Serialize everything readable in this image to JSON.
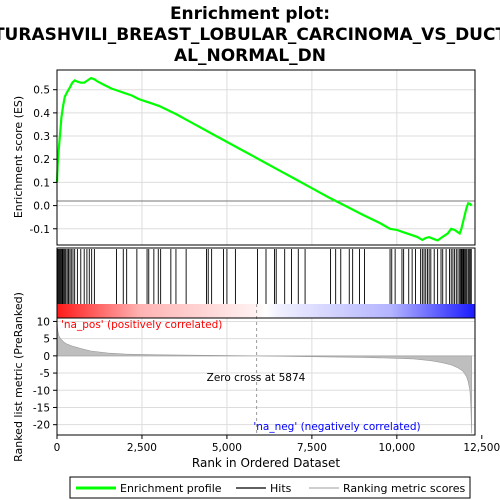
{
  "chart_data": {
    "type": "line",
    "title_lines": [
      "Enrichment plot:",
      "TURASHVILI_BREAST_LOBULAR_CARCINOMA_VS_DUCT",
      "AL_NORMAL_DN"
    ],
    "es_panel": {
      "ylabel": "Enrichment score (ES)",
      "ylim": [
        -0.17,
        0.585
      ],
      "yticks": [
        -0.1,
        0.0,
        0.1,
        0.2,
        0.3,
        0.4,
        0.5
      ],
      "ytick_labels": [
        "-0.1",
        "0.0",
        "0.1",
        "0.2",
        "0.3",
        "0.4",
        "0.5"
      ],
      "series": [
        {
          "name": "Enrichment profile",
          "x": [
            0,
            20,
            50,
            90,
            130,
            180,
            230,
            300,
            380,
            450,
            520,
            600,
            700,
            800,
            900,
            1000,
            1100,
            1200,
            1400,
            1600,
            1800,
            2000,
            2200,
            2400,
            2600,
            2800,
            3000,
            3500,
            4000,
            4500,
            5000,
            5500,
            6000,
            6500,
            7000,
            7500,
            8000,
            8500,
            9000,
            9500,
            9800,
            10000,
            10200,
            10400,
            10600,
            10750,
            10850,
            10950,
            11100,
            11200,
            11300,
            11400,
            11500,
            11600,
            11700,
            11800,
            11850,
            11900,
            11950,
            12000,
            12050,
            12100,
            12150,
            12200
          ],
          "y": [
            0.1,
            0.18,
            0.24,
            0.31,
            0.38,
            0.43,
            0.47,
            0.49,
            0.51,
            0.53,
            0.54,
            0.535,
            0.53,
            0.53,
            0.54,
            0.55,
            0.545,
            0.535,
            0.52,
            0.505,
            0.495,
            0.485,
            0.475,
            0.46,
            0.45,
            0.44,
            0.43,
            0.395,
            0.355,
            0.315,
            0.275,
            0.235,
            0.195,
            0.155,
            0.115,
            0.075,
            0.035,
            -0.002,
            -0.04,
            -0.075,
            -0.1,
            -0.105,
            -0.115,
            -0.125,
            -0.135,
            -0.148,
            -0.14,
            -0.136,
            -0.145,
            -0.15,
            -0.14,
            -0.13,
            -0.12,
            -0.1,
            -0.105,
            -0.115,
            -0.12,
            -0.1,
            -0.07,
            -0.04,
            -0.01,
            0.01,
            0.008,
            0.0
          ],
          "color": "#00ff00"
        }
      ]
    },
    "hits_panel": {
      "hit_positions": [
        10,
        30,
        60,
        90,
        120,
        150,
        170,
        200,
        230,
        260,
        300,
        340,
        380,
        420,
        470,
        520,
        600,
        700,
        800,
        880,
        950,
        1020,
        1100,
        1750,
        1950,
        2050,
        2350,
        2650,
        2700,
        2850,
        2980,
        3050,
        3350,
        3500,
        3800,
        4400,
        4450,
        4550,
        4900,
        5000,
        5250,
        5900,
        6150,
        6400,
        6450,
        6700,
        6900,
        7100,
        7300,
        8050,
        8200,
        8350,
        8600,
        8700,
        8900,
        9050,
        9800,
        9850,
        9950,
        10150,
        10200,
        10350,
        10450,
        10550,
        10700,
        10750,
        10800,
        10850,
        10900,
        10950,
        11000,
        11100,
        11200,
        11300,
        11350,
        11450,
        11550,
        11600,
        11650,
        11700,
        11750,
        11800,
        11850,
        11880,
        11900,
        11920,
        11950,
        11970,
        12000,
        12030,
        12060,
        12100,
        12130,
        12160,
        12190
      ]
    },
    "metric_panel": {
      "ylabel": "Ranked list metric (PreRanked)",
      "ylim": [
        -23,
        11
      ],
      "yticks": [
        -20,
        -15,
        -10,
        -5,
        0,
        5,
        10
      ],
      "ytick_labels": [
        "-20",
        "-15",
        "-10",
        "-5",
        "0",
        "5",
        "10"
      ],
      "xlabel": "Rank in Ordered Dataset",
      "xlim": [
        0,
        12300
      ],
      "xticks": [
        0,
        2500,
        5000,
        7500,
        10000,
        12500
      ],
      "xtick_labels": [
        "0",
        "2,500",
        "5,000",
        "7,500",
        "10,000",
        "12,500"
      ],
      "metric_profile": {
        "x": [
          0,
          20,
          50,
          100,
          200,
          300,
          500,
          700,
          1000,
          1500,
          2000,
          3000,
          4000,
          5000,
          5874,
          7000,
          8000,
          9000,
          10000,
          10500,
          11000,
          11300,
          11600,
          11800,
          11950,
          12050,
          12100,
          12150,
          12180,
          12200
        ],
        "y": [
          10.5,
          7.5,
          6.0,
          5.0,
          4.0,
          3.4,
          2.7,
          2.1,
          1.4,
          0.8,
          0.5,
          0.3,
          0.2,
          0.1,
          0.0,
          -0.15,
          -0.3,
          -0.45,
          -0.7,
          -0.9,
          -1.4,
          -1.9,
          -2.6,
          -3.5,
          -4.5,
          -6.0,
          -7.5,
          -10.0,
          -15.0,
          -22.5
        ]
      },
      "annotations": {
        "positive": "'na_pos' (positively correlated)",
        "negative": "'na_neg' (negatively correlated)",
        "zero_cross": "Zero cross at 5874"
      },
      "zero_cross": 5874
    },
    "legend": [
      {
        "label": "Enrichment profile",
        "color": "#00ff00"
      },
      {
        "label": "Hits",
        "color": "#000000"
      },
      {
        "label": "Ranking metric scores",
        "color": "#bebebe"
      }
    ],
    "colors": {
      "enrichment": "#00ff00",
      "hits": "#000000",
      "metric_fill": "#bebebe",
      "pos_text": "#ff0000",
      "neg_text": "#0000ff",
      "grid": "#dddddd"
    }
  }
}
